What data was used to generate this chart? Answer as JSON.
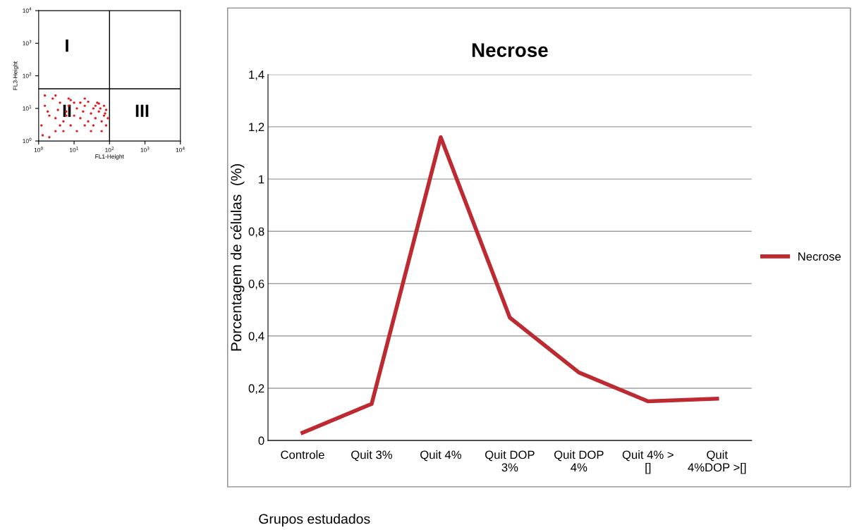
{
  "chart_data": [
    {
      "type": "scatter",
      "xlabel": "FL1-Height",
      "ylabel": "FL3-Height",
      "log": "xy",
      "xlim": [
        1,
        10000
      ],
      "ylim": [
        1,
        10000
      ],
      "xticks": [
        {
          "value": 1,
          "label": "10$^{0}$"
        },
        {
          "value": 10,
          "label": "10$^{1}$"
        },
        {
          "value": 100,
          "label": "10$^{2}$"
        },
        {
          "value": 1000,
          "label": "10$^{3}$"
        },
        {
          "value": 10000,
          "label": "10$^{4}$"
        }
      ],
      "yticks": [
        {
          "value": 1,
          "label": "10$^{0}$"
        },
        {
          "value": 10,
          "label": "10$^{1}$"
        },
        {
          "value": 100,
          "label": "10$^{2}$"
        },
        {
          "value": 1000,
          "label": "10$^{3}$"
        },
        {
          "value": 10000,
          "label": "10$^{4}$"
        }
      ],
      "marker": "circle",
      "grid": false,
      "series": [
        {
          "color": "#e02020",
          "x": [
            1.2,
            1.5,
            2,
            2.5,
            3,
            3.5,
            4,
            5,
            6,
            7,
            8,
            10,
            12,
            15,
            18,
            20,
            25,
            30,
            35,
            40,
            50,
            60,
            70,
            80,
            90,
            1.3,
            2,
            3,
            5,
            8,
            12,
            20,
            30,
            45,
            60,
            80,
            1.8,
            4,
            7,
            15,
            25,
            40,
            55,
            75,
            1.5,
            3,
            6,
            10,
            20,
            35,
            50,
            70
          ],
          "values": [
            3,
            12,
            6,
            20,
            2,
            9,
            15,
            4,
            8,
            12,
            3,
            6,
            10,
            5,
            8,
            12,
            4,
            7,
            10,
            5,
            8,
            4,
            6,
            9,
            5,
            1.5,
            1.3,
            25,
            2,
            18,
            2,
            20,
            2,
            15,
            2,
            3,
            8,
            3,
            20,
            15,
            16,
            12,
            10,
            7,
            25,
            5,
            6,
            15,
            3,
            3,
            14,
            12
          ]
        }
      ],
      "ref_lines": [
        {
          "axis": "x",
          "value": 100,
          "color": "#000000"
        },
        {
          "axis": "y",
          "value": 40,
          "color": "#000000"
        }
      ],
      "annotations": [
        "I",
        "II",
        "III"
      ]
    },
    {
      "type": "line",
      "title": "Necrose",
      "ylabel": "Porcentagem de células  (%)",
      "xlabel": "Grupos estudados",
      "categories": [
        "Controle",
        "Quit 3%",
        "Quit 4%",
        "Quit DOP\n3%",
        "Quit DOP\n4%",
        "Quit 4% >\n[]",
        "Quit\n4%DOP >[]"
      ],
      "ylim": [
        0,
        1.4
      ],
      "yticks": [
        {
          "value": 0,
          "label": "0"
        },
        {
          "value": 0.2,
          "label": "0,2"
        },
        {
          "value": 0.4,
          "label": "0,4"
        },
        {
          "value": 0.6,
          "label": "0,6"
        },
        {
          "value": 0.8,
          "label": "0,8"
        },
        {
          "value": 1,
          "label": "1"
        },
        {
          "value": 1.2,
          "label": "1,2"
        },
        {
          "value": 1.4,
          "label": "1,4"
        }
      ],
      "grid": "y",
      "legend": "right",
      "marker": "none",
      "line_style": "solid",
      "series": [
        {
          "name": "Necrose",
          "color": "#be2a32",
          "values": [
            0.03,
            0.14,
            1.16,
            0.47,
            0.26,
            0.15,
            0.16
          ]
        }
      ]
    }
  ]
}
